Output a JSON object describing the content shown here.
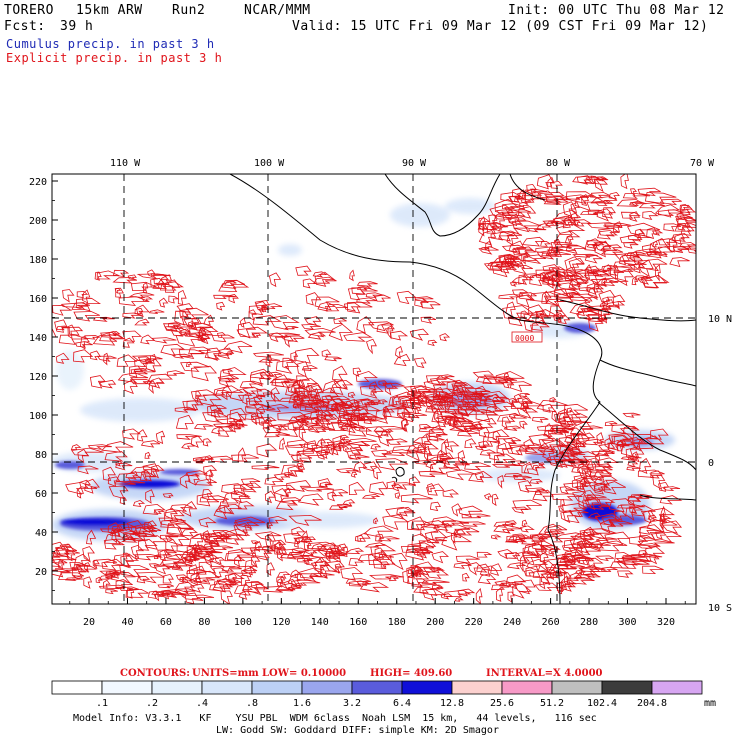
{
  "header": {
    "model": "TORERO",
    "resolution": "15km ARW",
    "run": "Run2",
    "org": "NCAR/MMM",
    "init": "Init: 00 UTC Thu 08 Mar 12",
    "fcst_label": "Fcst:",
    "fcst_value": "39 h",
    "valid": "Valid: 15 UTC Fri 09 Mar 12 (09 CST Fri 09 Mar 12)",
    "line_cumulus": "Cumulus precip. in past 3 h",
    "line_explicit": "Explicit precip. in past 3 h"
  },
  "axes": {
    "top_lon": [
      "110 W",
      "100 W",
      "90 W",
      "80 W",
      "70 W"
    ],
    "right_lat": [
      "10 N",
      "0",
      "10 S"
    ],
    "y_ticks": [
      "220",
      "200",
      "180",
      "160",
      "140",
      "120",
      "100",
      "80",
      "60",
      "40",
      "20"
    ],
    "x_ticks": [
      "20",
      "40",
      "60",
      "80",
      "100",
      "120",
      "140",
      "160",
      "180",
      "200",
      "220",
      "240",
      "260",
      "280",
      "300",
      "320"
    ]
  },
  "contour_info": {
    "label": "CONTOURS:",
    "units": "UNITS=mm",
    "low": "LOW= 0.10000",
    "high": "HIGH= 409.60",
    "interval": "INTERVAL=X 4.0000"
  },
  "colorbar": {
    "unit": "mm",
    "labels": [
      ".1",
      ".2",
      ".4",
      ".8",
      "1.6",
      "3.2",
      "6.4",
      "12.8",
      "25.6",
      "51.2",
      "102.4",
      "204.8"
    ],
    "colors": [
      "#ffffff",
      "#f2f8ff",
      "#e6f1fc",
      "#d8e6fa",
      "#bcd0f5",
      "#9aa6ee",
      "#5a5cdc",
      "#0f0fd8",
      "#fcd1cf",
      "#f79ac7",
      "#bfbfbf",
      "#3c3c3c",
      "#d7a6f2"
    ]
  },
  "footer": {
    "line1": "Model Info: V3.3.1   KF    YSU PBL  WDM 6class  Noah LSM  15 km,   44 levels,   116 sec",
    "line2": "LW: Godd SW: Goddard DIFF: simple KM: 2D Smagor"
  },
  "map_labels": {
    "box_code": "0000"
  },
  "colors": {
    "contour_red": "#e0141b",
    "cumulus_blue": "#1f2bb5"
  }
}
